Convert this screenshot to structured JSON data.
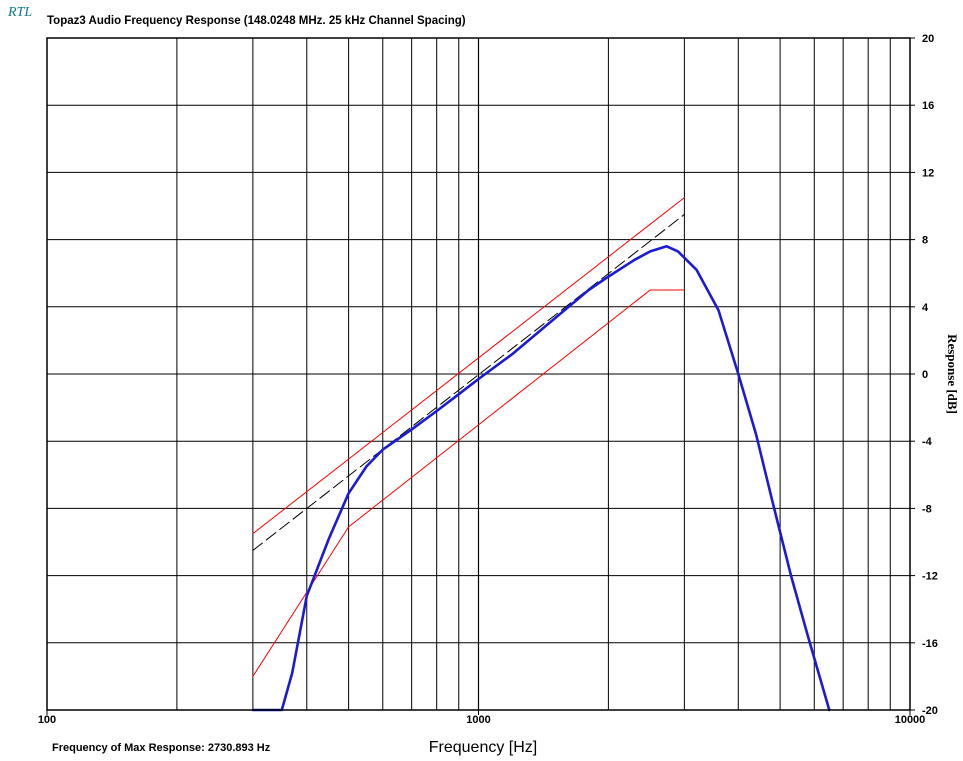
{
  "chart_data": {
    "type": "line",
    "logo": "RTL",
    "title": "Topaz3 Audio Frequency Response (148.0248 MHz.  25 kHz Channel Spacing)",
    "xlabel": "Frequency [Hz]",
    "ylabel": "Response [dB]",
    "x_scale": "log",
    "xlim": [
      100,
      10000
    ],
    "ylim": [
      -20,
      20
    ],
    "x_tick_labels": [
      {
        "value": 100,
        "label": "100"
      },
      {
        "value": 1000,
        "label": "1000"
      },
      {
        "value": 10000,
        "label": "10000"
      }
    ],
    "y_ticks": [
      20,
      16,
      12,
      8,
      4,
      0,
      -4,
      -8,
      -12,
      -16,
      -20
    ],
    "grid": true,
    "footer": "Frequency of Max Response: 2730.893 Hz",
    "series": [
      {
        "color": "#1a1ad8",
        "points": [
          [
            300,
            -20
          ],
          [
            350,
            -20
          ],
          [
            370,
            -17.8
          ],
          [
            400,
            -13.2
          ],
          [
            450,
            -9.8
          ],
          [
            500,
            -7.1
          ],
          [
            550,
            -5.5
          ],
          [
            600,
            -4.5
          ],
          [
            700,
            -3.3
          ],
          [
            800,
            -2.2
          ],
          [
            900,
            -1.2
          ],
          [
            1000,
            -0.3
          ],
          [
            1200,
            1.2
          ],
          [
            1500,
            3.3
          ],
          [
            1800,
            5.0
          ],
          [
            2000,
            5.8
          ],
          [
            2300,
            6.8
          ],
          [
            2500,
            7.3
          ],
          [
            2730,
            7.6
          ],
          [
            2900,
            7.3
          ],
          [
            3200,
            6.2
          ],
          [
            3600,
            3.8
          ],
          [
            4000,
            0.0
          ],
          [
            4400,
            -3.6
          ],
          [
            4800,
            -7.6
          ],
          [
            5300,
            -12.0
          ],
          [
            5800,
            -15.6
          ],
          [
            6500,
            -20.0
          ]
        ]
      },
      {
        "style": "dashed",
        "color": "#000000",
        "points": [
          [
            300,
            -10.5
          ],
          [
            3000,
            9.5
          ]
        ]
      },
      {
        "color": "#ff0000",
        "points": [
          [
            300,
            -9.5
          ],
          [
            3000,
            10.5
          ]
        ]
      },
      {
        "color": "#ff0000",
        "points": [
          [
            300,
            -18.0
          ],
          [
            500,
            -9.1
          ],
          [
            2500,
            5.0
          ],
          [
            3000,
            5.0
          ]
        ]
      }
    ]
  }
}
